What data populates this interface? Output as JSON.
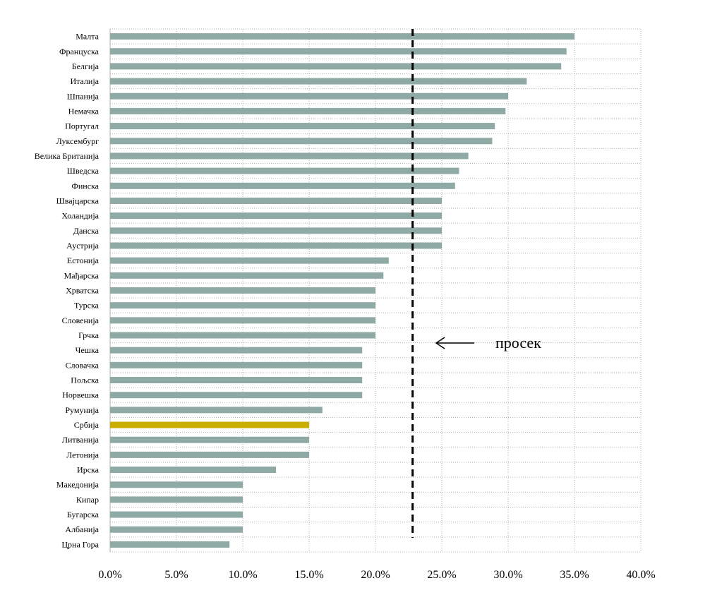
{
  "chart_data": {
    "type": "bar",
    "orientation": "horizontal",
    "title": "",
    "xlabel": "",
    "ylabel": "",
    "xlim": [
      0,
      40
    ],
    "x_ticks": [
      0,
      5,
      10,
      15,
      20,
      25,
      30,
      35,
      40
    ],
    "x_tick_labels": [
      "0.0%",
      "5.0%",
      "10.0%",
      "15.0%",
      "20.0%",
      "25.0%",
      "30.0%",
      "35.0%",
      "40.0%"
    ],
    "grid": true,
    "categories": [
      "Малта",
      "Француска",
      "Белгија",
      "Италија",
      "Шпанија",
      "Немачка",
      "Португал",
      "Луксембург",
      "Велика Британија",
      "Шведска",
      "Финска",
      "Швајцарска",
      "Холандија",
      "Данска",
      "Аустрија",
      "Естонија",
      "Мађарска",
      "Хрватска",
      "Турска",
      "Словенија",
      "Грчка",
      "Чешка",
      "Словачка",
      "Пољска",
      "Норвешка",
      "Румунија",
      "Србија",
      "Литванија",
      "Летонија",
      "Ирска",
      "Македонија",
      "Кипар",
      "Бугарска",
      "Албанија",
      "Црна Гора"
    ],
    "values": [
      35,
      34.4,
      34,
      31.4,
      30,
      29.8,
      29,
      28.8,
      27,
      26.3,
      26,
      25,
      25,
      25,
      25,
      21,
      20.6,
      20,
      20,
      20,
      20,
      19,
      19,
      19,
      19,
      16,
      15,
      15,
      15,
      12.5,
      10,
      10,
      10,
      10,
      9
    ],
    "highlight_category": "Србија",
    "colors": {
      "bar": "#8fa9a5",
      "highlight": "#c9ad00",
      "average_line": "#000000",
      "grid": "#b0b0b0"
    },
    "average": {
      "value": 22.8,
      "style": "dashed"
    },
    "annotation": {
      "text": "просек",
      "arrow": "left"
    }
  }
}
